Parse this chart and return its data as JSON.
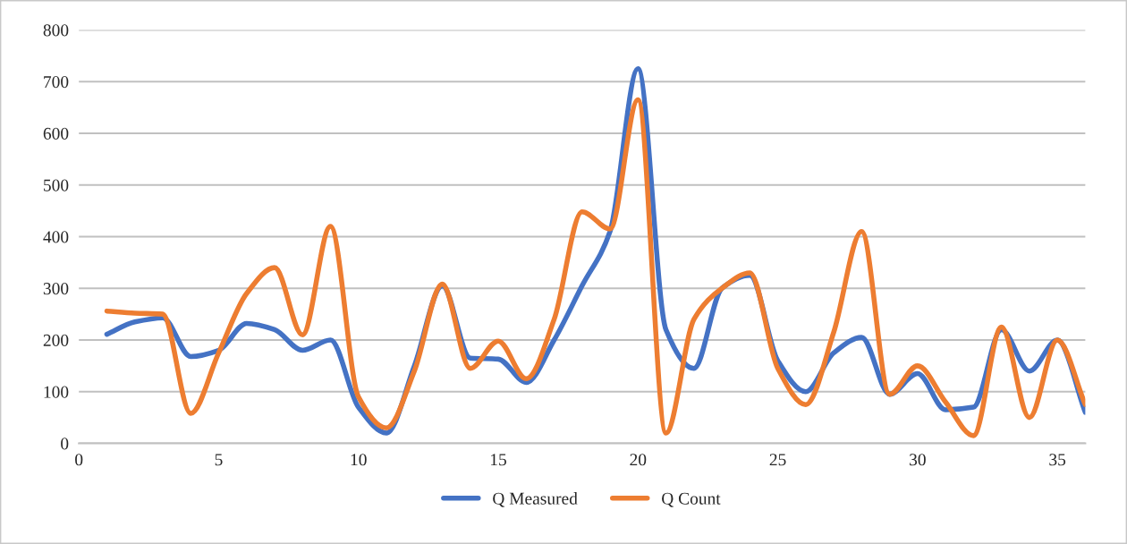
{
  "chart_data": {
    "type": "line",
    "x": [
      1,
      2,
      3,
      4,
      5,
      6,
      7,
      8,
      9,
      10,
      11,
      12,
      13,
      14,
      15,
      16,
      17,
      18,
      19,
      20,
      21,
      22,
      23,
      24,
      25,
      26,
      27,
      28,
      29,
      30,
      31,
      32,
      33,
      34,
      35,
      36
    ],
    "series": [
      {
        "name": "Q Measured",
        "color": "#4472c4",
        "values": [
          211,
          235,
          243,
          168,
          180,
          232,
          220,
          180,
          200,
          70,
          20,
          150,
          305,
          165,
          163,
          118,
          200,
          305,
          410,
          725,
          220,
          145,
          300,
          325,
          160,
          100,
          175,
          205,
          95,
          135,
          65,
          70,
          220,
          140,
          200,
          60
        ]
      },
      {
        "name": "Q Count",
        "color": "#ed7d31",
        "values": [
          256,
          252,
          250,
          58,
          175,
          290,
          340,
          210,
          420,
          90,
          30,
          140,
          308,
          145,
          198,
          125,
          240,
          448,
          415,
          665,
          20,
          240,
          300,
          330,
          145,
          75,
          215,
          410,
          95,
          150,
          80,
          15,
          225,
          50,
          200,
          75
        ]
      }
    ],
    "xlim": [
      0,
      36
    ],
    "xticks": [
      0,
      5,
      10,
      15,
      20,
      25,
      30,
      35
    ],
    "ylim": [
      0,
      800
    ],
    "yticks": [
      0,
      100,
      200,
      300,
      400,
      500,
      600,
      700,
      800
    ],
    "grid": "y",
    "legend": "bottom",
    "marker": "none",
    "line_style": "solid"
  }
}
